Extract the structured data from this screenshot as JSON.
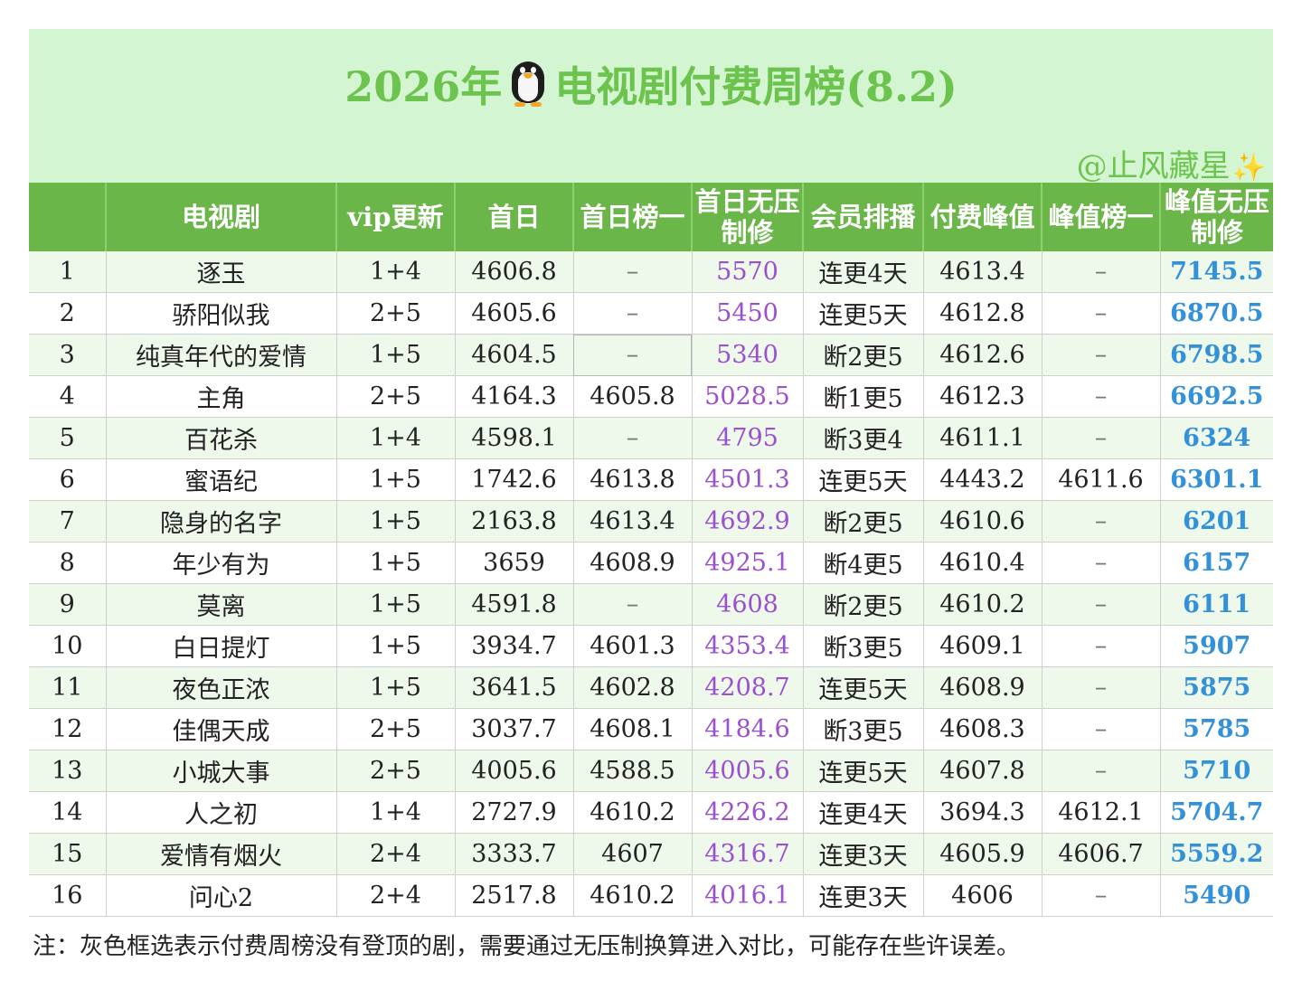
{
  "title": {
    "before": "2026年",
    "after": "电视剧付费周榜(8.2)"
  },
  "title_icon": "penguin-icon",
  "author": "@止风藏星",
  "author_icon": "sparkles-icon",
  "colors": {
    "title_green": "#6cc34e",
    "header_green": "#6ab648",
    "banner": "#d4f5d1",
    "row_tint": "#eef9ec",
    "purple": "#9b4fd1",
    "blue": "#3391d9"
  },
  "table": {
    "headers": [
      "",
      "电视剧",
      "vip更新",
      "首日",
      "首日榜一",
      "首日无压制修",
      "会员排播",
      "付费峰值",
      "峰值榜一",
      "峰值无压制修"
    ],
    "rows": [
      [
        "1",
        "逐玉",
        "1+4",
        "4606.8",
        "–",
        "5570",
        "连更4天",
        "4613.4",
        "–",
        "7145.5"
      ],
      [
        "2",
        "骄阳似我",
        "2+5",
        "4605.6",
        "–",
        "5450",
        "连更5天",
        "4612.8",
        "–",
        "6870.5"
      ],
      [
        "3",
        "纯真年代的爱情",
        "1+5",
        "4604.5",
        "–",
        "5340",
        "断2更5",
        "4612.6",
        "–",
        "6798.5"
      ],
      [
        "4",
        "主角",
        "2+5",
        "4164.3",
        "4605.8",
        "5028.5",
        "断1更5",
        "4612.3",
        "–",
        "6692.5"
      ],
      [
        "5",
        "百花杀",
        "1+4",
        "4598.1",
        "–",
        "4795",
        "断3更4",
        "4611.1",
        "–",
        "6324"
      ],
      [
        "6",
        "蜜语纪",
        "1+5",
        "1742.6",
        "4613.8",
        "4501.3",
        "连更5天",
        "4443.2",
        "4611.6",
        "6301.1"
      ],
      [
        "7",
        "隐身的名字",
        "1+5",
        "2163.8",
        "4613.4",
        "4692.9",
        "断2更5",
        "4610.6",
        "–",
        "6201"
      ],
      [
        "8",
        "年少有为",
        "1+5",
        "3659",
        "4608.9",
        "4925.1",
        "断4更5",
        "4610.4",
        "–",
        "6157"
      ],
      [
        "9",
        "莫离",
        "1+5",
        "4591.8",
        "–",
        "4608",
        "断2更5",
        "4610.2",
        "–",
        "6111"
      ],
      [
        "10",
        "白日提灯",
        "1+5",
        "3934.7",
        "4601.3",
        "4353.4",
        "断3更5",
        "4609.1",
        "–",
        "5907"
      ],
      [
        "11",
        "夜色正浓",
        "1+5",
        "3641.5",
        "4602.8",
        "4208.7",
        "连更5天",
        "4608.9",
        "–",
        "5875"
      ],
      [
        "12",
        "佳偶天成",
        "2+5",
        "3037.7",
        "4608.1",
        "4184.6",
        "断3更5",
        "4608.3",
        "–",
        "5785"
      ],
      [
        "13",
        "小城大事",
        "2+5",
        "4005.6",
        "4588.5",
        "4005.6",
        "连更5天",
        "4607.8",
        "–",
        "5710"
      ],
      [
        "14",
        "人之初",
        "1+4",
        "2727.9",
        "4610.2",
        "4226.2",
        "连更4天",
        "3694.3",
        "4612.1",
        "5704.7"
      ],
      [
        "15",
        "爱情有烟火",
        "2+4",
        "3333.7",
        "4607",
        "4316.7",
        "连更3天",
        "4605.9",
        "4606.7",
        "5559.2"
      ],
      [
        "16",
        "问心2",
        "2+4",
        "2517.8",
        "4610.2",
        "4016.1",
        "连更3天",
        "4606",
        "–",
        "5490"
      ]
    ]
  },
  "note": "注：灰色框选表示付费周榜没有登顶的剧，需要通过无压制换算进入对比，可能存在些许误差。"
}
